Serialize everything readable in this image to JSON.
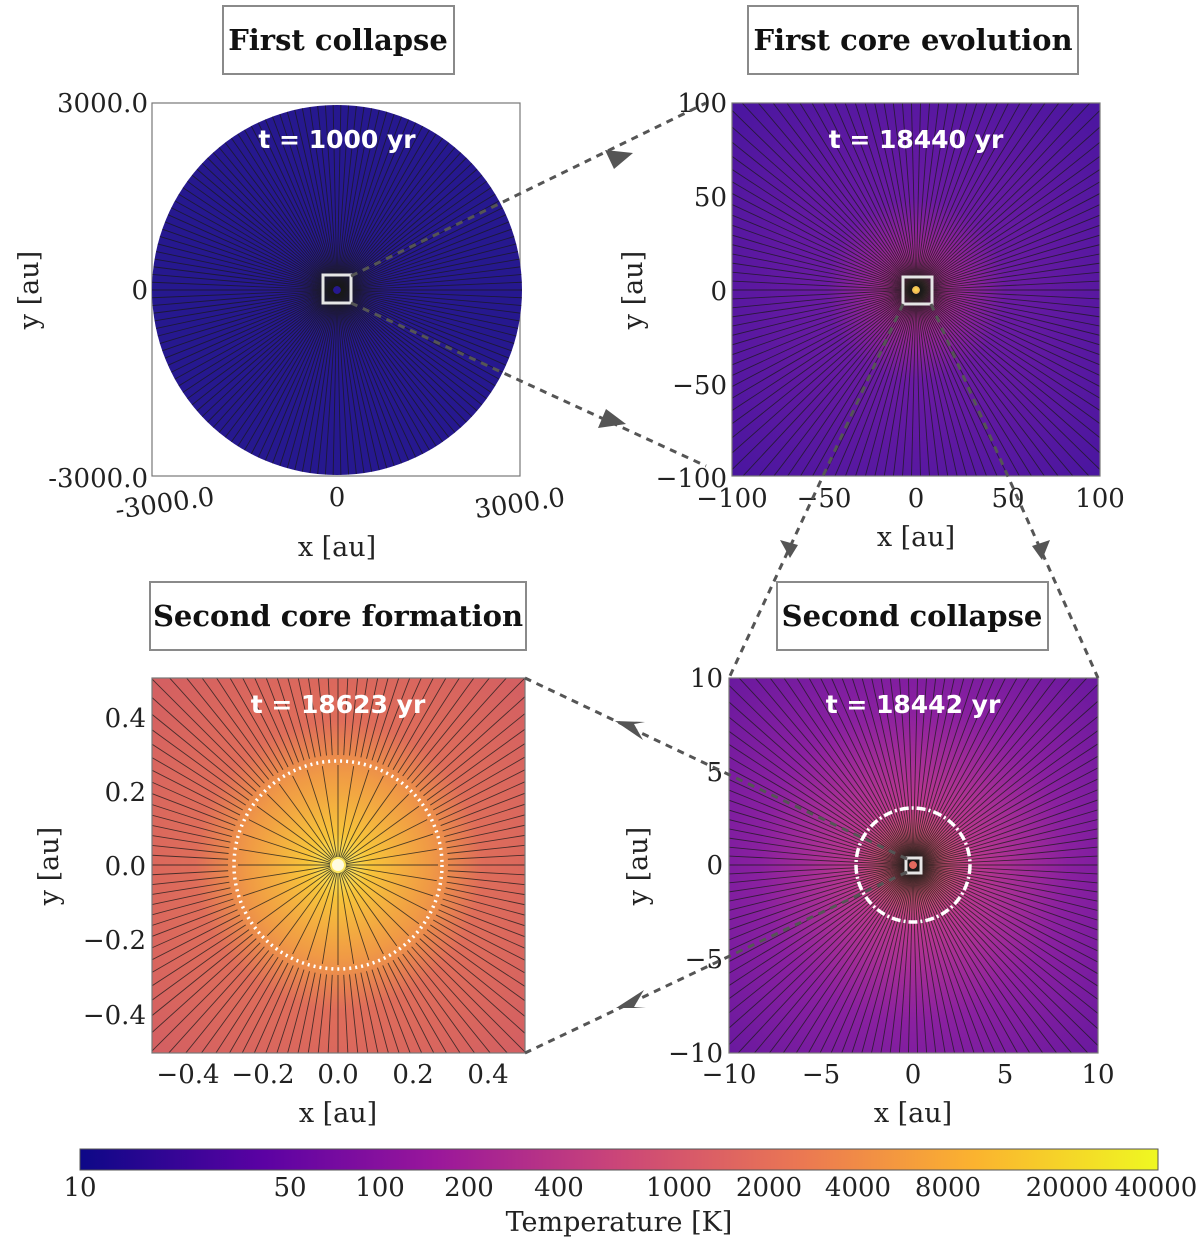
{
  "chart_data": [
    {
      "type": "heatmap",
      "title": "First collapse",
      "time_label": "t = 1000 yr",
      "xlabel": "x [au]",
      "ylabel": "y [au]",
      "xlim": [
        -3000,
        3000
      ],
      "ylim": [
        -3000,
        3000
      ],
      "x_ticks": [
        "-3000.0",
        "0",
        "3000.0"
      ],
      "y_ticks": [
        "3000.0",
        "0",
        "-3000.0"
      ],
      "temperature_K_background": 10,
      "colors": {
        "field": "#26188f"
      }
    },
    {
      "type": "heatmap",
      "title": "First core evolution",
      "time_label": "t = 18440 yr",
      "xlabel": "x [au]",
      "ylabel": "y [au]",
      "xlim": [
        -100,
        100
      ],
      "ylim": [
        -100,
        100
      ],
      "x_ticks": [
        "−100",
        "−50",
        "0",
        "50",
        "100"
      ],
      "y_ticks": [
        "100",
        "50",
        "0",
        "−50",
        "−100"
      ],
      "colors": {
        "field": "#5417a0",
        "center": "#b3309a"
      }
    },
    {
      "type": "heatmap",
      "title": "Second collapse",
      "time_label": "t = 18442 yr",
      "xlabel": "x [au]",
      "ylabel": "y [au]",
      "xlim": [
        -10,
        10
      ],
      "ylim": [
        -10,
        10
      ],
      "x_ticks": [
        "−10",
        "−5",
        "0",
        "5",
        "10"
      ],
      "y_ticks": [
        "10",
        "5",
        "0",
        "−5",
        "−10"
      ],
      "colors": {
        "field": "#7a1fa0",
        "center": "#c7408b"
      }
    },
    {
      "type": "heatmap",
      "title": "Second core formation",
      "time_label": "t = 18623 yr",
      "xlabel": "x [au]",
      "ylabel": "y [au]",
      "xlim": [
        -0.5,
        0.5
      ],
      "ylim": [
        -0.5,
        0.5
      ],
      "x_ticks": [
        "−0.4",
        "−0.2",
        "0.0",
        "0.2",
        "0.4"
      ],
      "y_ticks": [
        "0.4",
        "0.2",
        "0.0",
        "−0.2",
        "−0.4"
      ],
      "colors": {
        "field": "#d8625f",
        "center": "#f3e13a"
      }
    }
  ],
  "colorbar": {
    "label": "Temperature [K]",
    "ticks": [
      "10",
      "50",
      "100",
      "200",
      "400",
      "1000",
      "2000",
      "4000",
      "8000",
      "20000",
      "40000"
    ],
    "colors": [
      "#0d0887",
      "#5b02a3",
      "#9a179b",
      "#cb4678",
      "#eb7852",
      "#fbb32f",
      "#eff821"
    ]
  }
}
